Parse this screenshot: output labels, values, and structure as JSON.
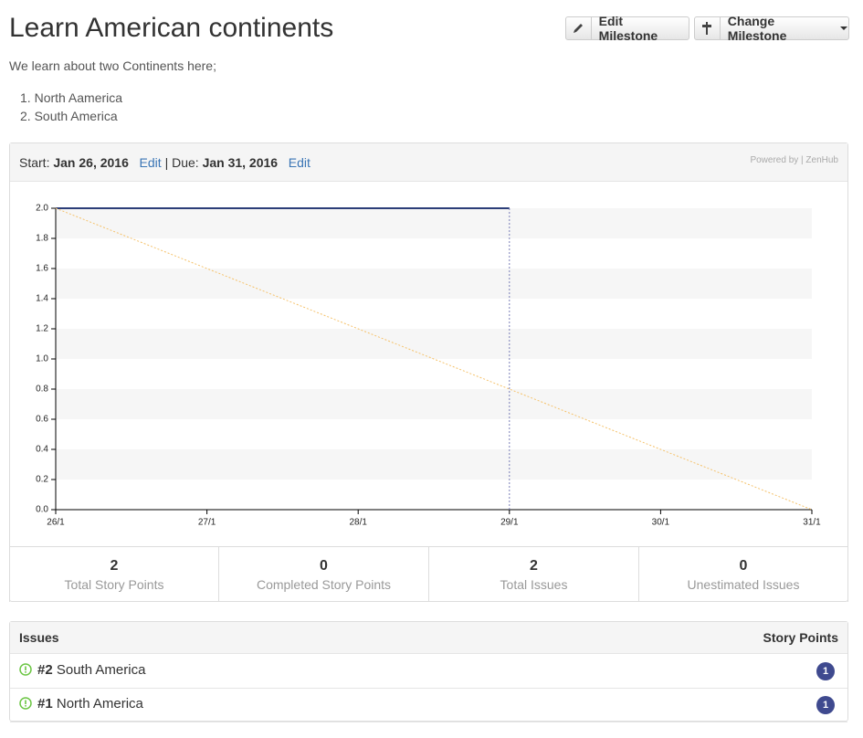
{
  "header": {
    "title": "Learn American continents",
    "edit_button": "Edit Milestone",
    "change_button": "Change Milestone"
  },
  "description": {
    "text": "We learn about two Continents here;",
    "list": [
      "North Aamerica",
      "South America"
    ]
  },
  "milestone": {
    "start_label": "Start:",
    "start": "Jan 26, 2016",
    "start_edit": "Edit",
    "separator": "|",
    "due_label": "Due:",
    "due": "Jan 31, 2016",
    "due_edit": "Edit",
    "powered_by": "Powered by | ZenHub"
  },
  "chart_data": {
    "type": "line",
    "categories": [
      "26/1",
      "27/1",
      "28/1",
      "29/1",
      "30/1",
      "31/1"
    ],
    "series": [
      {
        "color": "#2c3e78",
        "values": [
          2,
          2,
          2,
          2,
          null,
          null
        ]
      },
      {
        "color": "#f5c26b",
        "values": [
          2,
          1.6,
          1.2,
          0.8,
          0.4,
          0
        ]
      }
    ],
    "ylim": [
      0,
      2
    ],
    "yticks": [
      {
        "value": 0,
        "label": "0.0"
      },
      {
        "value": 0.2,
        "label": "0.2"
      },
      {
        "value": 0.4,
        "label": "0.4"
      },
      {
        "value": 0.6,
        "label": "0.6"
      },
      {
        "value": 0.8,
        "label": "0.8"
      },
      {
        "value": 1,
        "label": "1.0"
      },
      {
        "value": 1.2,
        "label": "1.2"
      },
      {
        "value": 1.4,
        "label": "1.4"
      },
      {
        "value": 1.6,
        "label": "1.6"
      },
      {
        "value": 1.8,
        "label": "1.8"
      },
      {
        "value": 2,
        "label": "2.0"
      }
    ],
    "grid": true
  },
  "stats": [
    {
      "value": 2,
      "label": "Total Story Points"
    },
    {
      "value": 0,
      "label": "Completed Story Points"
    },
    {
      "value": 2,
      "label": "Total Issues"
    },
    {
      "value": 0,
      "label": "Unestimated Issues"
    }
  ],
  "issues": {
    "header": "Issues",
    "points_header": "Story Points",
    "rows": [
      {
        "number": "#2",
        "title": "South America",
        "points": 1
      },
      {
        "number": "#1",
        "title": "North America",
        "points": 1
      }
    ]
  }
}
